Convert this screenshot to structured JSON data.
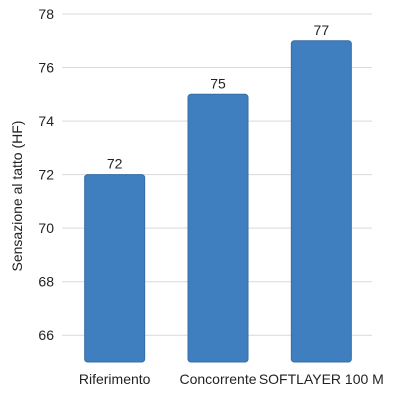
{
  "chart_data": {
    "type": "bar",
    "categories": [
      "Riferimento",
      "Concorrente",
      "SOFTLAYER 100 M"
    ],
    "values": [
      72,
      75,
      77
    ],
    "title": "",
    "xlabel": "",
    "ylabel": "Sensazione al tatto (HF)",
    "ylim": [
      65,
      78
    ],
    "yticks": [
      66,
      68,
      70,
      72,
      74,
      76,
      78
    ],
    "grid": true,
    "bar_color": "#3f7fc0",
    "data_labels": [
      "72",
      "75",
      "77"
    ]
  }
}
